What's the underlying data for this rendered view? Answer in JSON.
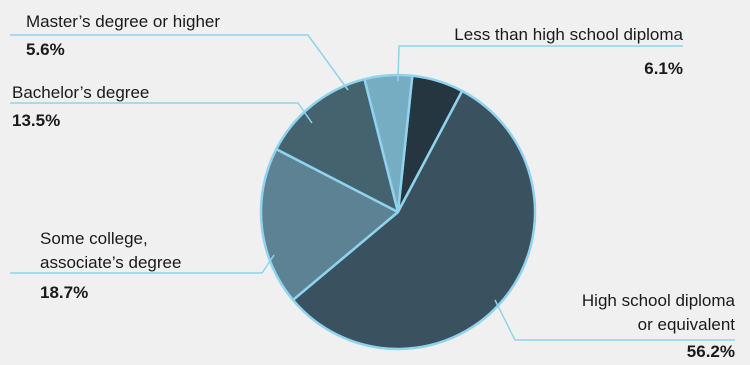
{
  "chart_data": {
    "type": "pie",
    "slices": [
      {
        "label_lines": [
          "Less than high school diploma"
        ],
        "value": 6.1,
        "value_label": "6.1%",
        "color": "#263640"
      },
      {
        "label_lines": [
          "High school diploma",
          "or equivalent"
        ],
        "value": 56.2,
        "value_label": "56.2%",
        "color": "#3a5260"
      },
      {
        "label_lines": [
          "Some college,",
          "associate’s degree"
        ],
        "value": 18.7,
        "value_label": "18.7%",
        "color": "#5c8294"
      },
      {
        "label_lines": [
          "Bachelor’s degree"
        ],
        "value": 13.5,
        "value_label": "13.5%",
        "color": "#44636f"
      },
      {
        "label_lines": [
          "Master’s degree or higher"
        ],
        "value": 5.6,
        "value_label": "5.6%",
        "color": "#77adc3"
      }
    ],
    "start_angle_deg": 6,
    "direction": "clockwise",
    "slice_border_color": "#8fd3ee",
    "leader_line_color": "#8fd3ee"
  }
}
